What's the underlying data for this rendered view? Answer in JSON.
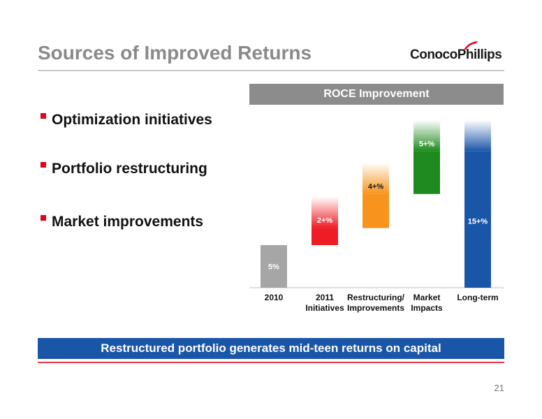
{
  "header": {
    "title": "Sources of Improved Returns",
    "logo_text": "ConocoPhillips"
  },
  "bullets": [
    "Optimization initiatives",
    "Portfolio restructuring",
    "Market improvements"
  ],
  "banner": "Restructured portfolio generates mid-teen returns on capital",
  "page_number": "21",
  "colors": {
    "title": "#8a8a8a",
    "bullet_marker": "#e4001b",
    "chart_header_bg": "#8c8c8c",
    "banner_bg": "#1a56a8"
  },
  "chart_data": {
    "type": "bar",
    "subtype": "waterfall",
    "title": "ROCE Improvement",
    "categories": [
      [
        "2010"
      ],
      [
        "2011",
        "Initiatives"
      ],
      [
        "Restructuring/",
        "Improvements"
      ],
      [
        "Market",
        "Impacts"
      ],
      [
        "Long-term"
      ]
    ],
    "labels": [
      "5%",
      "2+%",
      "4+%",
      "5+%",
      "15+%"
    ],
    "bars": [
      {
        "start": 0,
        "end": 5,
        "open_ended": false,
        "color": "#a6a6a6",
        "label_color": "#ffffff"
      },
      {
        "start": 5,
        "end": 7,
        "open_ended": true,
        "color": "#ee1c25",
        "label_color": "#ffffff"
      },
      {
        "start": 7,
        "end": 11,
        "open_ended": true,
        "color": "#f7941d",
        "label_color": "#1a1a1a"
      },
      {
        "start": 11,
        "end": 16,
        "open_ended": true,
        "color": "#1f8a1f",
        "label_color": "#ffffff"
      },
      {
        "start": 0,
        "end": 16,
        "open_ended": true,
        "color": "#1a56a8",
        "label_color": "#ffffff"
      }
    ],
    "ylim": [
      0,
      20
    ],
    "grid": false,
    "legend": "none"
  }
}
